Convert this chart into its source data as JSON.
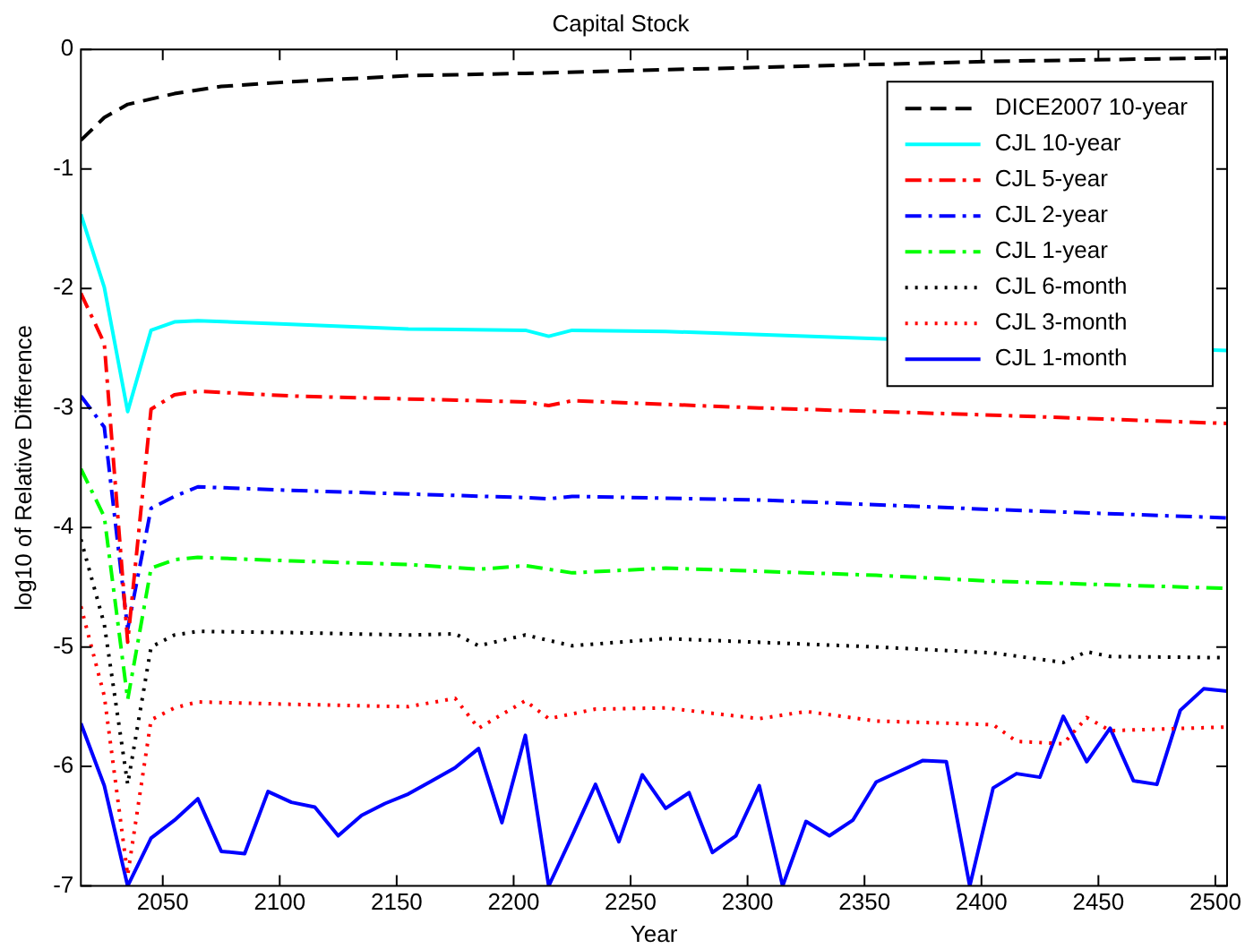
{
  "chart_data": {
    "type": "line",
    "title": "Capital Stock",
    "xlabel": "Year",
    "ylabel": "log10 of Relative Difference",
    "xlim": [
      2015,
      2505
    ],
    "xticks": [
      2050,
      2100,
      2150,
      2200,
      2250,
      2300,
      2350,
      2400,
      2450,
      2500
    ],
    "ylim": [
      -7,
      0
    ],
    "yticks": [
      -7,
      -6,
      -5,
      -4,
      -3,
      -2,
      -1,
      0
    ],
    "grid": false,
    "legend": "top right",
    "marker": "none",
    "series": [
      {
        "name": "DICE2007 10-year",
        "color": "#000000",
        "line_style": "dashed",
        "x": [
          2015,
          2025,
          2035,
          2055,
          2075,
          2105,
          2155,
          2205,
          2305,
          2405,
          2505
        ],
        "values": [
          -0.76,
          -0.57,
          -0.46,
          -0.37,
          -0.31,
          -0.27,
          -0.22,
          -0.2,
          -0.15,
          -0.1,
          -0.07
        ]
      },
      {
        "name": "CJL 10-year",
        "color": "#00ffff",
        "line_style": "solid",
        "x": [
          2015,
          2025,
          2035,
          2045,
          2055,
          2065,
          2105,
          2155,
          2205,
          2215,
          2225,
          2265,
          2355,
          2505
        ],
        "values": [
          -1.38,
          -1.99,
          -3.03,
          -2.35,
          -2.28,
          -2.27,
          -2.3,
          -2.34,
          -2.35,
          -2.4,
          -2.35,
          -2.36,
          -2.42,
          -2.52
        ]
      },
      {
        "name": "CJL 5-year",
        "color": "#ff0000",
        "line_style": "dashdot",
        "x": [
          2015,
          2025,
          2035,
          2045,
          2055,
          2065,
          2105,
          2205,
          2215,
          2225,
          2305,
          2405,
          2505
        ],
        "values": [
          -2.04,
          -2.46,
          -4.96,
          -3.01,
          -2.89,
          -2.86,
          -2.9,
          -2.95,
          -2.98,
          -2.94,
          -3.0,
          -3.06,
          -3.13
        ]
      },
      {
        "name": "CJL 2-year",
        "color": "#0000ff",
        "line_style": "dashdot",
        "x": [
          2015,
          2025,
          2035,
          2045,
          2055,
          2065,
          2105,
          2155,
          2205,
          2215,
          2225,
          2305,
          2405,
          2505
        ],
        "values": [
          -2.9,
          -3.16,
          -4.85,
          -3.84,
          -3.74,
          -3.66,
          -3.69,
          -3.72,
          -3.75,
          -3.76,
          -3.74,
          -3.77,
          -3.85,
          -3.92
        ]
      },
      {
        "name": "CJL 1-year",
        "color": "#00ff00",
        "line_style": "dashdot",
        "x": [
          2015,
          2025,
          2035,
          2045,
          2055,
          2065,
          2105,
          2155,
          2185,
          2205,
          2225,
          2265,
          2355,
          2405,
          2505
        ],
        "values": [
          -3.51,
          -3.91,
          -5.44,
          -4.34,
          -4.27,
          -4.25,
          -4.28,
          -4.31,
          -4.35,
          -4.32,
          -4.38,
          -4.34,
          -4.4,
          -4.45,
          -4.51
        ]
      },
      {
        "name": "CJL 6-month",
        "color": "#000000",
        "line_style": "dotted",
        "x": [
          2015,
          2025,
          2035,
          2045,
          2055,
          2065,
          2105,
          2155,
          2175,
          2185,
          2205,
          2225,
          2265,
          2355,
          2405,
          2435,
          2445,
          2455,
          2505
        ],
        "values": [
          -4.1,
          -4.81,
          -6.15,
          -5.0,
          -4.9,
          -4.87,
          -4.88,
          -4.9,
          -4.89,
          -4.99,
          -4.9,
          -4.99,
          -4.93,
          -5.0,
          -5.05,
          -5.13,
          -5.04,
          -5.08,
          -5.09
        ]
      },
      {
        "name": "CJL 3-month",
        "color": "#ff0000",
        "line_style": "dotted",
        "x": [
          2015,
          2025,
          2035,
          2045,
          2055,
          2065,
          2105,
          2155,
          2175,
          2185,
          2205,
          2215,
          2235,
          2265,
          2305,
          2325,
          2355,
          2405,
          2415,
          2435,
          2445,
          2455,
          2505
        ],
        "values": [
          -4.66,
          -5.41,
          -6.91,
          -5.61,
          -5.51,
          -5.46,
          -5.48,
          -5.5,
          -5.43,
          -5.68,
          -5.45,
          -5.6,
          -5.52,
          -5.51,
          -5.6,
          -5.54,
          -5.62,
          -5.65,
          -5.79,
          -5.81,
          -5.59,
          -5.7,
          -5.67
        ]
      },
      {
        "name": "CJL 1-month",
        "color": "#0000ff",
        "line_style": "solid",
        "x": [
          2015,
          2025,
          2035,
          2045,
          2055,
          2065,
          2075,
          2085,
          2095,
          2105,
          2115,
          2125,
          2135,
          2145,
          2155,
          2165,
          2175,
          2185,
          2195,
          2205,
          2215,
          2225,
          2235,
          2245,
          2255,
          2265,
          2275,
          2285,
          2295,
          2305,
          2315,
          2325,
          2335,
          2345,
          2355,
          2365,
          2375,
          2385,
          2395,
          2405,
          2415,
          2425,
          2435,
          2445,
          2455,
          2465,
          2475,
          2485,
          2495,
          2505
        ],
        "values": [
          -5.64,
          -6.16,
          -7.0,
          -6.6,
          -6.45,
          -6.27,
          -6.71,
          -6.73,
          -6.21,
          -6.3,
          -6.34,
          -6.58,
          -6.41,
          -6.31,
          -6.23,
          -6.12,
          -6.01,
          -5.85,
          -6.47,
          -5.74,
          -7.0,
          -6.58,
          -6.15,
          -6.63,
          -6.07,
          -6.35,
          -6.22,
          -6.72,
          -6.58,
          -6.16,
          -7.0,
          -6.46,
          -6.58,
          -6.45,
          -6.13,
          -6.04,
          -5.95,
          -5.96,
          -7.0,
          -6.18,
          -6.06,
          -6.09,
          -5.58,
          -5.96,
          -5.68,
          -6.12,
          -6.15,
          -5.53,
          -5.35,
          -5.37
        ]
      }
    ]
  }
}
